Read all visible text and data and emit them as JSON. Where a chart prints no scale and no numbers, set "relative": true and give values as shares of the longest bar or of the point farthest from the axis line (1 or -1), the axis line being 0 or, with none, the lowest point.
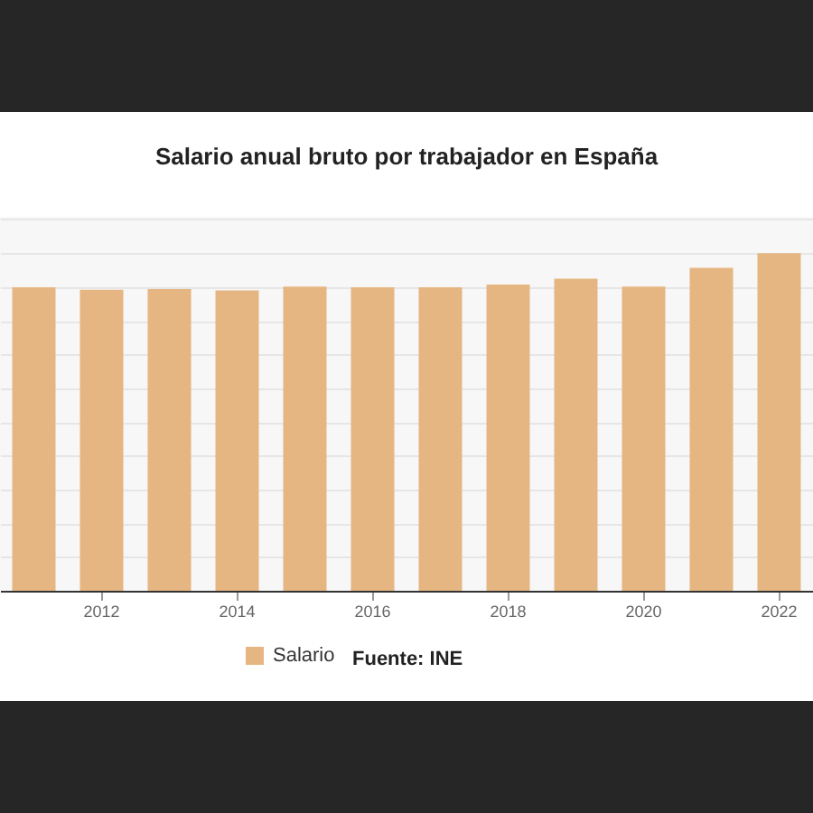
{
  "chart_data": {
    "type": "bar",
    "title": "Salario anual bruto por trabajador en España",
    "categories": [
      null,
      "2012",
      null,
      "2014",
      null,
      "2016",
      null,
      "2018",
      null,
      "2020",
      null,
      "2022"
    ],
    "series": [
      {
        "name": "Salario",
        "color": "#e6b682",
        "values": [
          0.899,
          0.892,
          0.894,
          0.89,
          0.901,
          0.899,
          0.899,
          0.907,
          0.925,
          0.901,
          0.957,
          1
        ]
      }
    ],
    "relative": true,
    "grid": "y",
    "legend": "bottom",
    "annotations": [
      "Fuente: INE"
    ]
  }
}
